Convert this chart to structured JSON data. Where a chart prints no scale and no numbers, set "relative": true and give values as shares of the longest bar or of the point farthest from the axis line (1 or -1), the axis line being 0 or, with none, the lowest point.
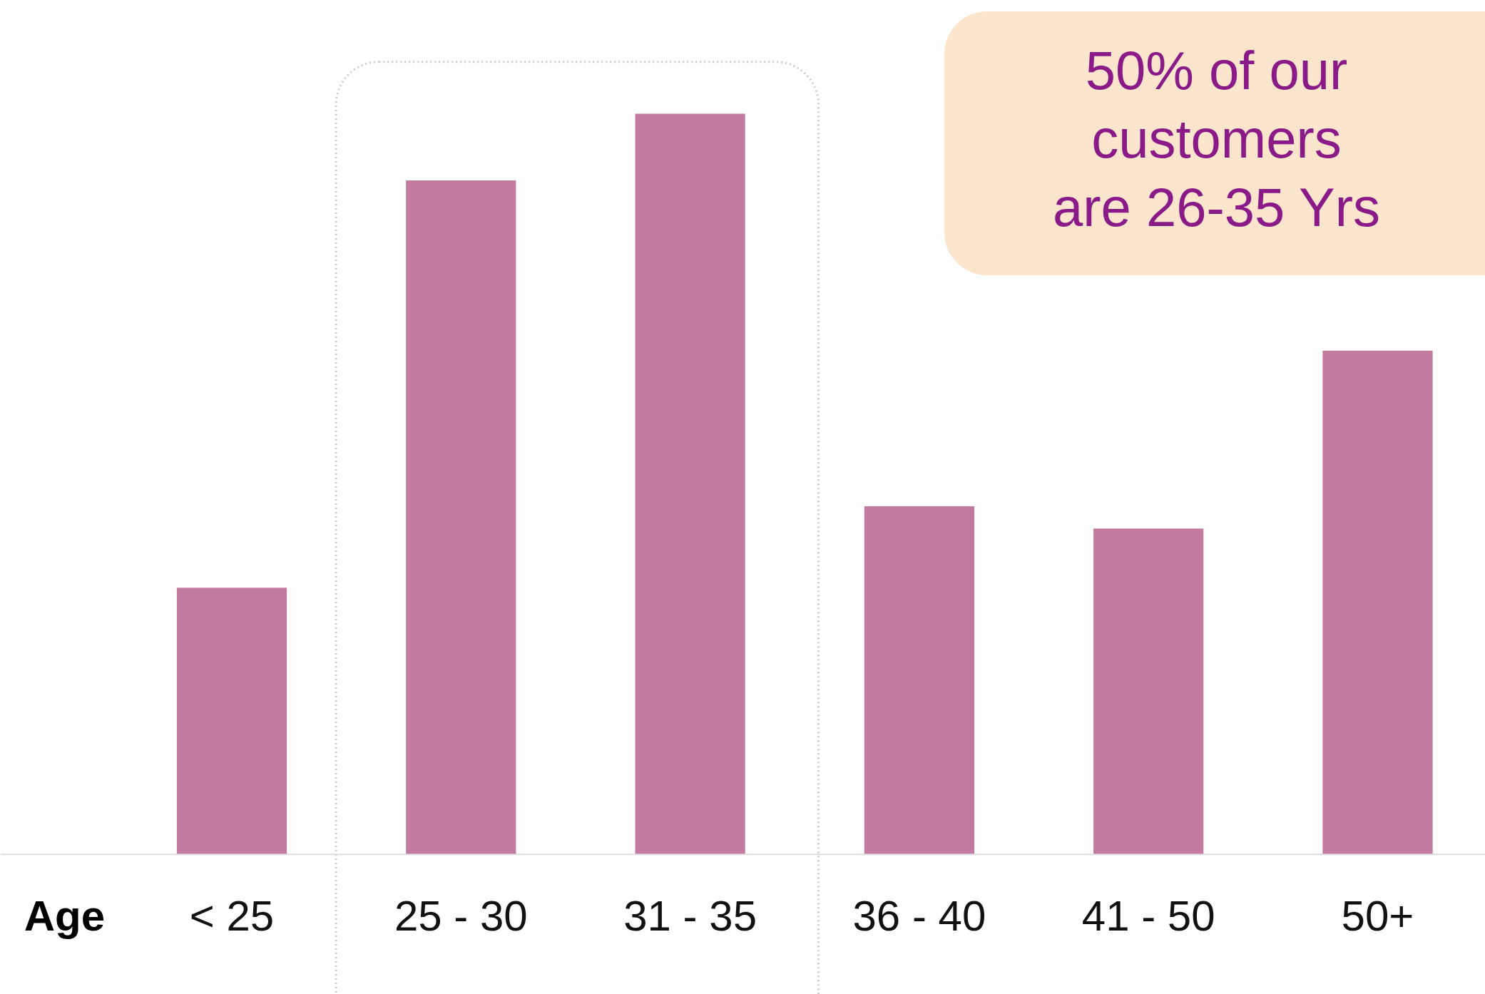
{
  "chart_data": {
    "type": "bar",
    "xlabel": "Age",
    "categories": [
      "< 25",
      "25 - 30",
      "31 - 35",
      "36 - 40",
      "41 - 50",
      "50+"
    ],
    "values": [
      0.36,
      0.91,
      1,
      0.47,
      0.44,
      0.68
    ],
    "color": "#c27a9e",
    "relative": true,
    "annotations": [
      "50% of our\ncustomers\nare 26-35 Yrs"
    ]
  }
}
